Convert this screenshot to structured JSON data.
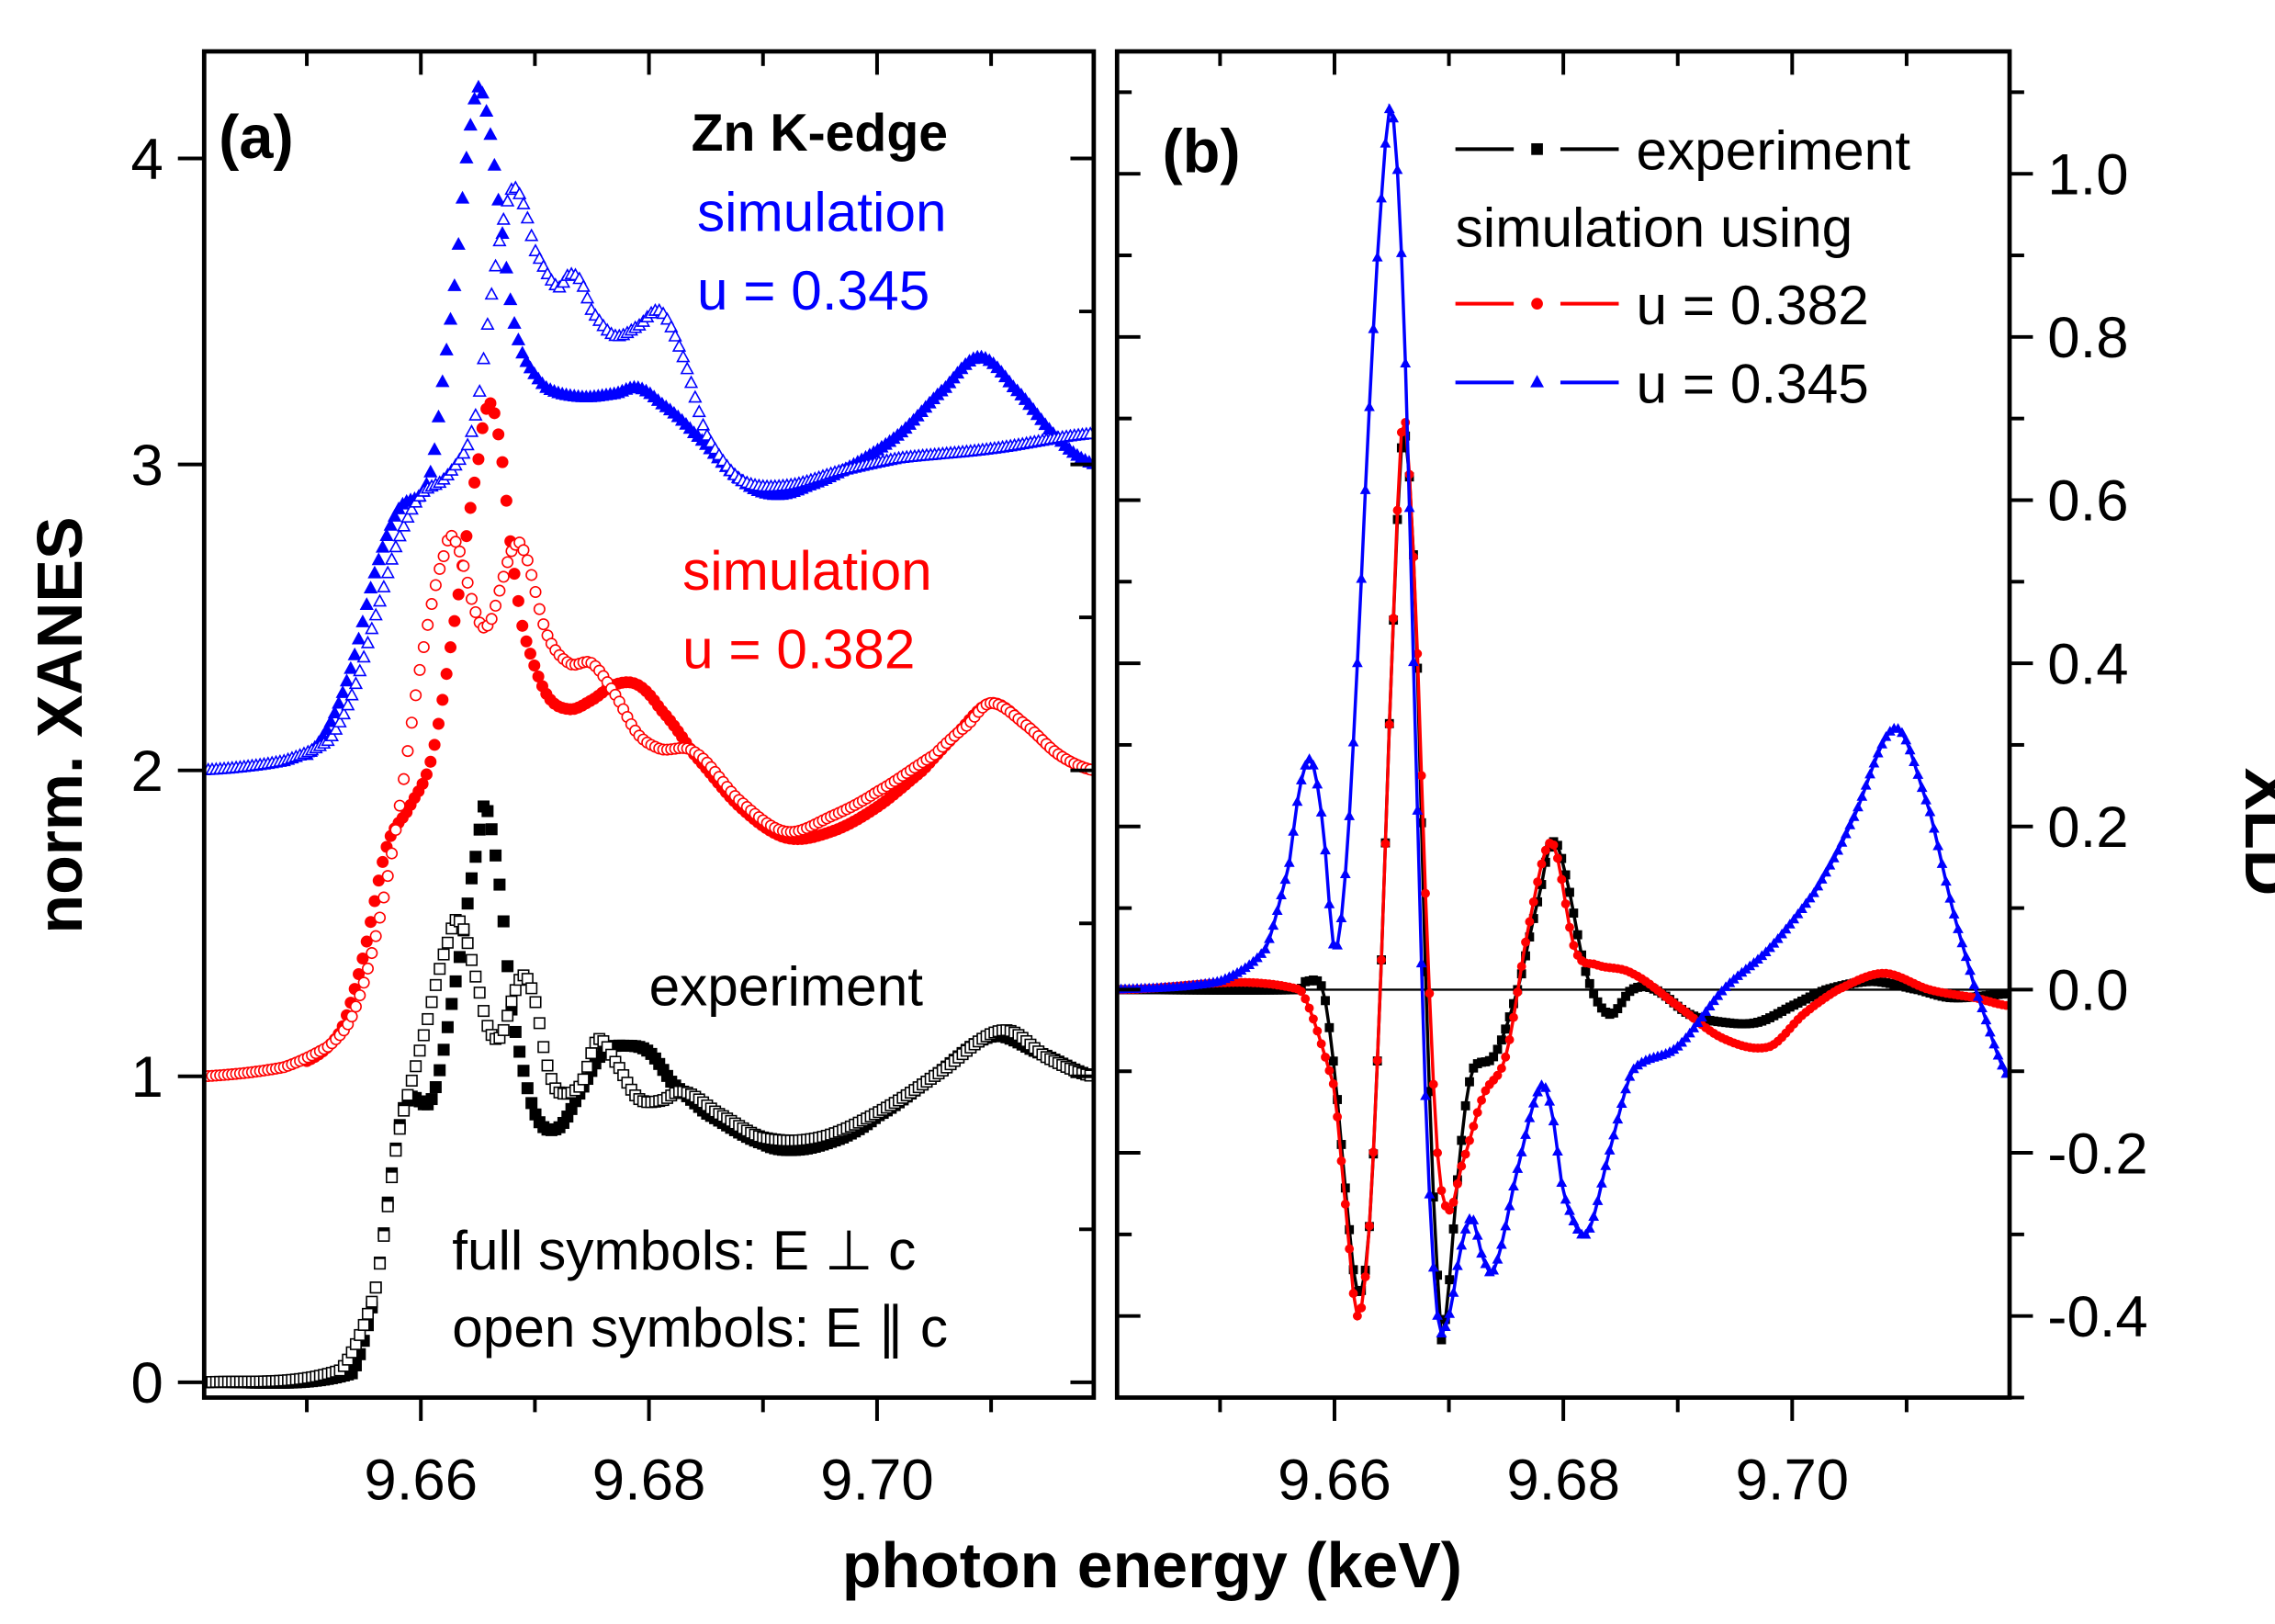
{
  "colors": {
    "experiment": "#000000",
    "u382": "#ff0000",
    "u345": "#0000ff"
  },
  "x_axis_label": "photon energy (keV)",
  "chart_data": [
    {
      "panel": "(a)",
      "type": "scatter",
      "title": "Zn K-edge",
      "xlabel": "photon energy (keV)",
      "ylabel": "norm. XANES",
      "xlim": [
        9.641,
        9.719
      ],
      "ylim": [
        -0.05,
        4.35
      ],
      "xticks": [
        9.66,
        9.68,
        9.7
      ],
      "xtick_labels": [
        "9.66",
        "9.68",
        "9.70"
      ],
      "yticks": [
        0,
        1,
        2,
        3,
        4
      ],
      "ytick_labels": [
        "0",
        "1",
        "2",
        "3",
        "4"
      ],
      "annotations": {
        "blue_title": "simulation",
        "blue_u": "u = 0.345",
        "red_title": "simulation",
        "red_u": "u = 0.382",
        "experiment": "experiment",
        "full_symbols": "full symbols: E ⊥ c",
        "open_symbols": "open symbols: E ∥ c"
      },
      "series": [
        {
          "name": "experiment E⊥c",
          "color": "#000000",
          "marker": "square-filled",
          "x": [
            9.641,
            9.654,
            9.656,
            9.658,
            9.659,
            9.661,
            9.663,
            9.665,
            9.6657,
            9.667,
            9.668,
            9.67,
            9.672,
            9.674,
            9.676,
            9.678,
            9.68,
            9.682,
            9.685,
            9.69,
            9.693,
            9.697,
            9.7,
            9.705,
            9.71,
            9.714,
            9.719
          ],
          "y": [
            0.0,
            0.03,
            0.3,
            0.8,
            0.93,
            0.93,
            1.3,
            1.75,
            1.88,
            1.6,
            1.2,
            0.88,
            0.83,
            0.95,
            1.08,
            1.1,
            1.08,
            0.98,
            0.88,
            0.78,
            0.76,
            0.8,
            0.87,
            1.0,
            1.13,
            1.08,
            1.0
          ]
        },
        {
          "name": "experiment E∥c",
          "color": "#000000",
          "marker": "square-open",
          "x": [
            9.641,
            9.653,
            9.656,
            9.658,
            9.66,
            9.6625,
            9.6635,
            9.665,
            9.666,
            9.667,
            9.668,
            9.669,
            9.67,
            9.671,
            9.672,
            9.674,
            9.6755,
            9.677,
            9.679,
            9.681,
            9.683,
            9.686,
            9.69,
            9.695,
            9.7,
            9.705,
            9.711,
            9.715,
            9.719
          ],
          "y": [
            0.0,
            0.04,
            0.3,
            0.8,
            1.1,
            1.45,
            1.5,
            1.3,
            1.15,
            1.13,
            1.25,
            1.33,
            1.25,
            1.05,
            0.95,
            0.97,
            1.12,
            1.05,
            0.93,
            0.92,
            0.95,
            0.88,
            0.8,
            0.8,
            0.88,
            1.0,
            1.15,
            1.06,
            1.0
          ]
        },
        {
          "name": "simulation u = 0.382 E⊥c",
          "color": "#ff0000",
          "marker": "circle-filled",
          "x": [
            9.65,
            9.653,
            9.655,
            9.657,
            9.659,
            9.661,
            9.663,
            9.665,
            9.666,
            9.667,
            9.668,
            9.669,
            9.671,
            9.673,
            9.675,
            9.677,
            9.679,
            9.681,
            9.684,
            9.688,
            9.692,
            9.696,
            9.7,
            9.704,
            9.707,
            9.71,
            9.713,
            9.716,
            9.719
          ],
          "y": [
            1.05,
            1.15,
            1.4,
            1.75,
            1.88,
            2.05,
            2.5,
            3.0,
            3.2,
            3.05,
            2.7,
            2.45,
            2.25,
            2.2,
            2.23,
            2.28,
            2.28,
            2.2,
            2.05,
            1.88,
            1.78,
            1.8,
            1.88,
            2.0,
            2.12,
            2.22,
            2.15,
            2.05,
            2.0
          ]
        },
        {
          "name": "simulation u = 0.382 E∥c",
          "color": "#ff0000",
          "marker": "circle-open",
          "x": [
            9.641,
            9.648,
            9.652,
            9.654,
            9.656,
            9.658,
            9.66,
            9.662,
            9.663,
            9.665,
            9.666,
            9.667,
            9.668,
            9.669,
            9.671,
            9.673,
            9.675,
            9.677,
            9.679,
            9.681,
            9.684,
            9.688,
            9.692,
            9.696,
            9.7,
            9.705,
            9.708,
            9.71,
            9.713,
            9.716,
            9.719
          ],
          "y": [
            1.0,
            1.03,
            1.1,
            1.2,
            1.45,
            1.85,
            2.35,
            2.7,
            2.75,
            2.5,
            2.48,
            2.6,
            2.72,
            2.72,
            2.45,
            2.35,
            2.35,
            2.25,
            2.12,
            2.07,
            2.06,
            1.9,
            1.8,
            1.85,
            1.93,
            2.05,
            2.15,
            2.22,
            2.15,
            2.05,
            2.0
          ]
        },
        {
          "name": "simulation u = 0.345 E⊥c",
          "color": "#0000ff",
          "marker": "triangle-filled",
          "x": [
            9.65,
            9.652,
            9.654,
            9.656,
            9.658,
            9.66,
            9.661,
            9.662,
            9.663,
            9.664,
            9.665,
            9.666,
            9.667,
            9.668,
            9.669,
            9.671,
            9.674,
            9.677,
            9.679,
            9.681,
            9.684,
            9.688,
            9.691,
            9.694,
            9.698,
            9.702,
            9.706,
            9.709,
            9.712,
            9.716,
            9.719
          ],
          "y": [
            2.05,
            2.15,
            2.35,
            2.65,
            2.85,
            2.9,
            3.0,
            3.3,
            3.6,
            4.0,
            4.23,
            4.1,
            3.8,
            3.5,
            3.35,
            3.25,
            3.22,
            3.23,
            3.25,
            3.2,
            3.1,
            2.95,
            2.9,
            2.93,
            3.0,
            3.1,
            3.25,
            3.35,
            3.25,
            3.08,
            3.0
          ]
        },
        {
          "name": "simulation u = 0.345 E∥c",
          "color": "#0000ff",
          "marker": "triangle-open",
          "x": [
            9.641,
            9.648,
            9.652,
            9.654,
            9.656,
            9.658,
            9.66,
            9.662,
            9.664,
            9.665,
            9.666,
            9.667,
            9.668,
            9.669,
            9.67,
            9.672,
            9.673,
            9.674,
            9.675,
            9.677,
            9.679,
            9.681,
            9.683,
            9.685,
            9.688,
            9.692,
            9.697,
            9.702,
            9.71,
            9.719
          ],
          "y": [
            2.0,
            2.03,
            2.1,
            2.25,
            2.5,
            2.75,
            2.9,
            2.95,
            3.05,
            3.2,
            3.5,
            3.75,
            3.9,
            3.85,
            3.7,
            3.58,
            3.62,
            3.6,
            3.5,
            3.42,
            3.45,
            3.5,
            3.35,
            3.1,
            2.95,
            2.93,
            2.98,
            3.02,
            3.05,
            3.1
          ]
        }
      ]
    },
    {
      "panel": "(b)",
      "type": "line",
      "xlabel": "photon energy (keV)",
      "ylabel": "XLD",
      "xlim": [
        9.641,
        9.719
      ],
      "ylim": [
        -0.5,
        1.15
      ],
      "xticks": [
        9.66,
        9.68,
        9.7
      ],
      "xtick_labels": [
        "9.66",
        "9.68",
        "9.70"
      ],
      "yticks": [
        -0.4,
        -0.2,
        0.0,
        0.2,
        0.4,
        0.6,
        0.8,
        1.0
      ],
      "ytick_labels": [
        "-0.4",
        "-0.2",
        "0.0",
        "0.2",
        "0.4",
        "0.6",
        "0.8",
        "1.0"
      ],
      "zero_line": true,
      "legend": {
        "position": "top-right",
        "header": "simulation using",
        "entries": [
          "experiment",
          "u = 0.382",
          "u = 0.345"
        ]
      },
      "series": [
        {
          "name": "experiment",
          "color": "#000000",
          "marker": "square-filled",
          "x": [
            9.641,
            9.657,
            9.6575,
            9.659,
            9.66,
            9.661,
            9.662,
            9.663,
            9.664,
            9.665,
            9.666,
            9.667,
            9.668,
            9.669,
            9.6695,
            9.671,
            9.672,
            9.674,
            9.676,
            9.678,
            9.679,
            9.68,
            9.682,
            9.684,
            9.686,
            9.688,
            9.691,
            9.694,
            9.697,
            9.7,
            9.703,
            9.707,
            9.711,
            9.714,
            9.719
          ],
          "y": [
            0.0,
            0.0,
            0.01,
            0.0,
            -0.1,
            -0.25,
            -0.37,
            -0.3,
            0.0,
            0.4,
            0.68,
            0.5,
            0.0,
            -0.35,
            -0.42,
            -0.2,
            -0.1,
            -0.08,
            0.0,
            0.12,
            0.18,
            0.15,
            0.02,
            -0.03,
            0.0,
            0.0,
            -0.03,
            -0.04,
            -0.04,
            -0.02,
            0.0,
            0.01,
            0.0,
            -0.01,
            -0.005
          ]
        },
        {
          "name": "u = 0.382",
          "color": "#ff0000",
          "marker": "circle-filled",
          "x": [
            9.641,
            9.657,
            9.66,
            9.661,
            9.662,
            9.663,
            9.664,
            9.665,
            9.666,
            9.667,
            9.668,
            9.669,
            9.67,
            9.671,
            9.673,
            9.675,
            9.677,
            9.679,
            9.681,
            9.683,
            9.686,
            9.69,
            9.694,
            9.698,
            9.701,
            9.704,
            9.708,
            9.712,
            9.716,
            9.719
          ],
          "y": [
            0.0,
            0.0,
            -0.12,
            -0.27,
            -0.4,
            -0.3,
            0.0,
            0.4,
            0.7,
            0.5,
            0.1,
            -0.2,
            -0.27,
            -0.22,
            -0.13,
            -0.08,
            0.08,
            0.18,
            0.05,
            0.03,
            0.02,
            -0.02,
            -0.06,
            -0.07,
            -0.03,
            0.0,
            0.02,
            0.0,
            -0.01,
            -0.02
          ]
        },
        {
          "name": "u = 0.345",
          "color": "#0000ff",
          "marker": "triangle-filled",
          "x": [
            9.641,
            9.65,
            9.654,
            9.656,
            9.657,
            9.658,
            9.659,
            9.66,
            9.661,
            9.662,
            9.663,
            9.664,
            9.665,
            9.666,
            9.667,
            9.668,
            9.669,
            9.67,
            9.671,
            9.672,
            9.673,
            9.674,
            9.676,
            9.678,
            9.679,
            9.68,
            9.682,
            9.684,
            9.686,
            9.69,
            9.694,
            9.698,
            9.702,
            9.705,
            9.709,
            9.712,
            9.714,
            9.716,
            9.719
          ],
          "y": [
            0.0,
            0.01,
            0.05,
            0.15,
            0.25,
            0.28,
            0.2,
            0.05,
            0.15,
            0.4,
            0.7,
            0.95,
            1.08,
            0.85,
            0.35,
            -0.15,
            -0.4,
            -0.4,
            -0.32,
            -0.28,
            -0.33,
            -0.34,
            -0.22,
            -0.12,
            -0.15,
            -0.25,
            -0.3,
            -0.2,
            -0.1,
            -0.07,
            0.0,
            0.05,
            0.12,
            0.2,
            0.32,
            0.22,
            0.1,
            0.0,
            -0.11
          ]
        }
      ]
    }
  ]
}
